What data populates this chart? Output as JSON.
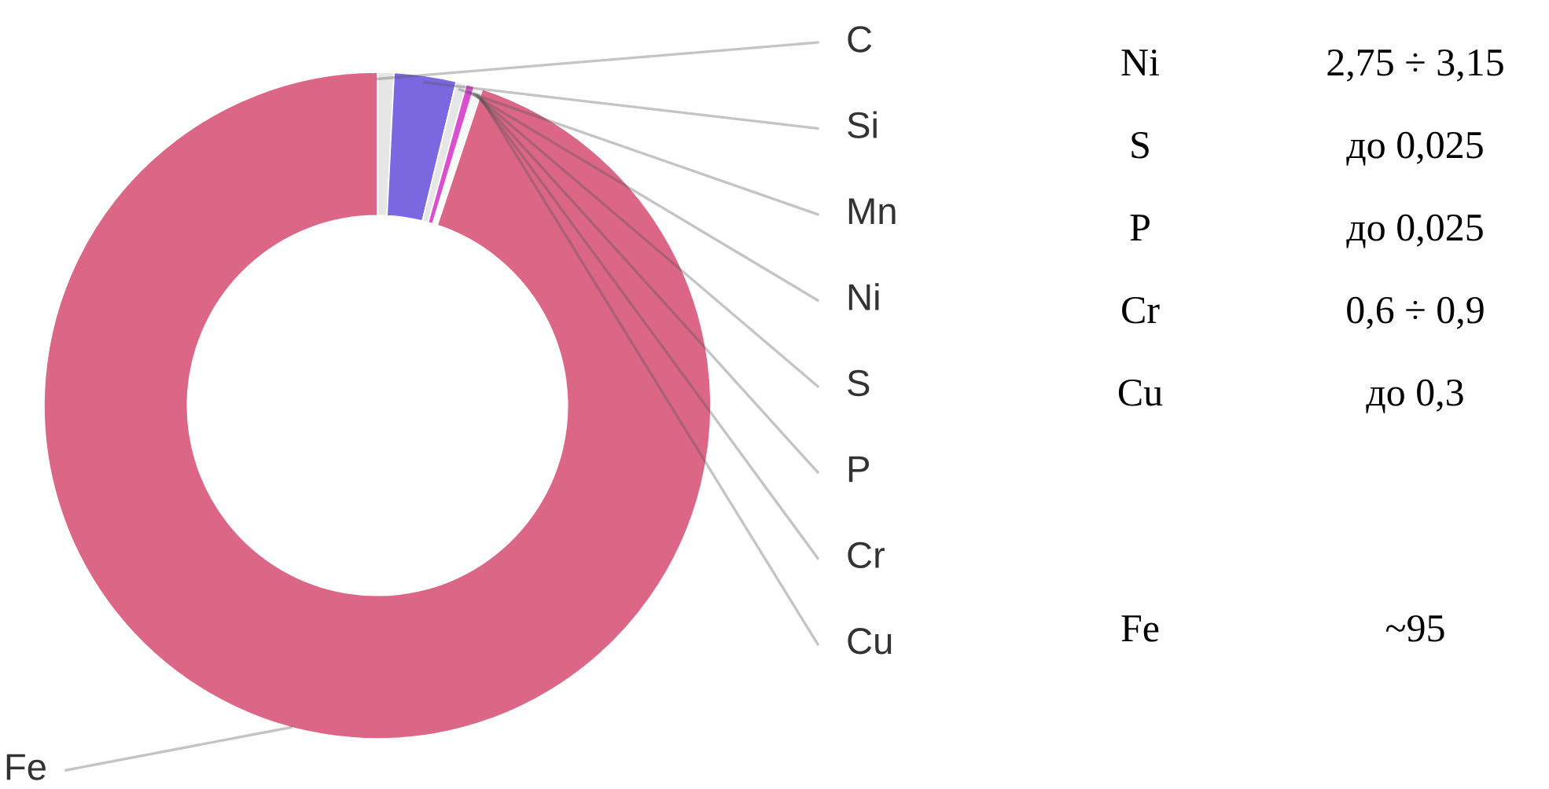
{
  "chart_data": {
    "type": "donut",
    "categories": [
      "C",
      "Si",
      "Mn",
      "Ni",
      "S",
      "P",
      "Cr",
      "Cu",
      "Fe"
    ],
    "values": [
      0.8,
      3.0,
      0.5,
      0.4,
      0.1,
      0.1,
      0.1,
      0.1,
      94.9
    ],
    "colors": [
      "#e6e6e6",
      "#7b68e0",
      "#e6e6e6",
      "#d94fd0",
      "#e6e6e6",
      "#e6e6e6",
      "#e6e6e6",
      "#e6e6e6",
      "#db6686"
    ],
    "legend": false,
    "annotations": [
      "Ni",
      "2,75 ÷ 3,15",
      "S",
      "до 0,025",
      "P",
      "до 0,025",
      "Cr",
      "0,6 ÷ 0,9",
      "Cu",
      "до 0,3",
      "Fe",
      "~95"
    ]
  }
}
